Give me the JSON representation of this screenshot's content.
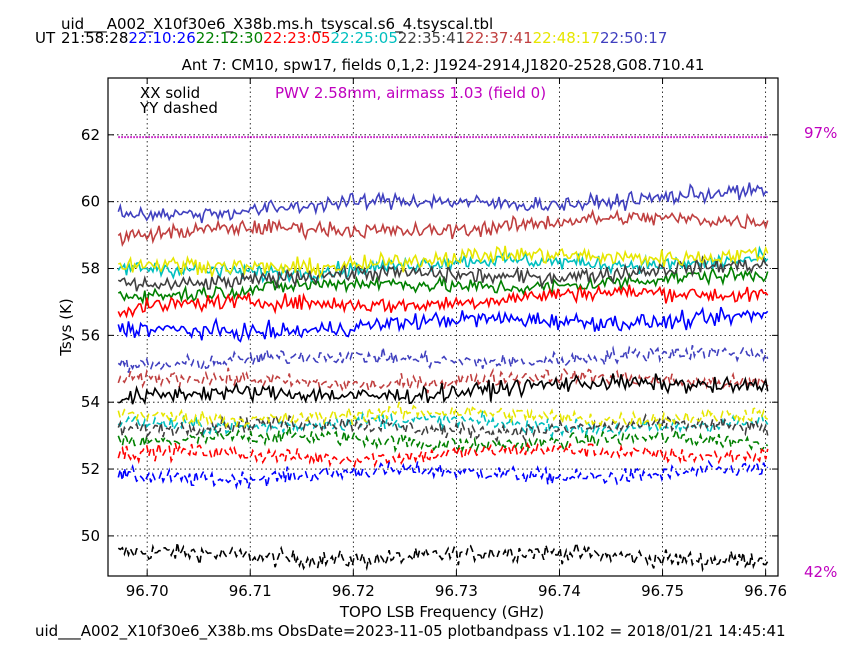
{
  "header": {
    "file_title": "uid___A002_X10f30e6_X38b.ms.h_tsyscal.s6_4.tsyscal.tbl",
    "ut_label": "UT",
    "times": [
      {
        "text": "21:58:28",
        "color": "#000000"
      },
      {
        "text": "22:10:26",
        "color": "#0000ff"
      },
      {
        "text": "22:12:30",
        "color": "#008000"
      },
      {
        "text": "22:23:05",
        "color": "#ff0000"
      },
      {
        "text": "22:25:05",
        "color": "#00bfbf"
      },
      {
        "text": "22:35:41",
        "color": "#404040"
      },
      {
        "text": "22:37:41",
        "color": "#c04040"
      },
      {
        "text": "22:48:17",
        "color": "#e6e600"
      },
      {
        "text": "22:50:17",
        "color": "#4040bf"
      }
    ]
  },
  "footer": {
    "text": "uid___A002_X10f30e6_X38b.ms  ObsDate=2023-11-05   plotbandpass v1.102 = 2018/01/21 14:45:41"
  },
  "chart_data": {
    "type": "line",
    "title": "Ant 7: CM10,  spw17,  fields 0,1,2: J1924-2914,J1820-2528,G08.710.41",
    "xlabel": "TOPO LSB Frequency (GHz)",
    "ylabel": "Tsys (K)",
    "xlim": [
      96.6962,
      96.7612
    ],
    "ylim": [
      48.8,
      63.7
    ],
    "xticks": [
      96.7,
      96.71,
      96.72,
      96.73,
      96.74,
      96.75,
      96.76
    ],
    "xtick_labels": [
      "96.70",
      "96.71",
      "96.72",
      "96.73",
      "96.74",
      "96.75",
      "96.76"
    ],
    "yticks": [
      50,
      52,
      54,
      56,
      58,
      60,
      62
    ],
    "ytick_labels": [
      "50",
      "52",
      "54",
      "56",
      "58",
      "60",
      "62"
    ],
    "grid": true,
    "legend_text": [
      "XX solid",
      "YY dashed"
    ],
    "annotation": {
      "text": "PWV 2.58mm, airmass 1.03 (field 0)",
      "color": "#bf00bf"
    },
    "transmission": {
      "color": "#bf00bf",
      "top_label": "97%",
      "bottom_label": "42%",
      "level": 61.93
    },
    "x_range": [
      96.6972,
      96.7602
    ],
    "series": [
      {
        "time": "21:58:28",
        "pol": "XX",
        "color": "#000000",
        "start": 54.1,
        "end": 54.6,
        "noise": 0.32
      },
      {
        "time": "21:58:28",
        "pol": "YY",
        "color": "#000000",
        "start": 49.4,
        "end": 49.4,
        "noise": 0.34
      },
      {
        "time": "22:10:26",
        "pol": "XX",
        "color": "#0000ff",
        "start": 56.1,
        "end": 56.6,
        "noise": 0.32
      },
      {
        "time": "22:10:26",
        "pol": "YY",
        "color": "#0000ff",
        "start": 51.8,
        "end": 51.9,
        "noise": 0.3
      },
      {
        "time": "22:12:30",
        "pol": "XX",
        "color": "#008000",
        "start": 57.3,
        "end": 57.7,
        "noise": 0.3
      },
      {
        "time": "22:12:30",
        "pol": "YY",
        "color": "#008000",
        "start": 52.9,
        "end": 52.8,
        "noise": 0.3
      },
      {
        "time": "22:23:05",
        "pol": "XX",
        "color": "#ff0000",
        "start": 56.8,
        "end": 57.3,
        "noise": 0.3
      },
      {
        "time": "22:23:05",
        "pol": "YY",
        "color": "#ff0000",
        "start": 52.4,
        "end": 52.5,
        "noise": 0.3
      },
      {
        "time": "22:25:05",
        "pol": "XX",
        "color": "#00bfbf",
        "start": 57.9,
        "end": 58.3,
        "noise": 0.3
      },
      {
        "time": "22:25:05",
        "pol": "YY",
        "color": "#00bfbf",
        "start": 53.4,
        "end": 53.3,
        "noise": 0.3
      },
      {
        "time": "22:35:41",
        "pol": "XX",
        "color": "#404040",
        "start": 57.6,
        "end": 58.0,
        "noise": 0.3
      },
      {
        "time": "22:35:41",
        "pol": "YY",
        "color": "#404040",
        "start": 53.3,
        "end": 53.2,
        "noise": 0.3
      },
      {
        "time": "22:37:41",
        "pol": "XX",
        "color": "#c04040",
        "start": 59.0,
        "end": 59.5,
        "noise": 0.3
      },
      {
        "time": "22:37:41",
        "pol": "YY",
        "color": "#c04040",
        "start": 54.6,
        "end": 54.7,
        "noise": 0.3
      },
      {
        "time": "22:48:17",
        "pol": "XX",
        "color": "#e6e600",
        "start": 58.0,
        "end": 58.5,
        "noise": 0.32
      },
      {
        "time": "22:48:17",
        "pol": "YY",
        "color": "#e6e600",
        "start": 53.6,
        "end": 53.6,
        "noise": 0.3
      },
      {
        "time": "22:50:17",
        "pol": "XX",
        "color": "#4040bf",
        "start": 59.7,
        "end": 60.2,
        "noise": 0.3
      },
      {
        "time": "22:50:17",
        "pol": "YY",
        "color": "#4040bf",
        "start": 55.2,
        "end": 55.4,
        "noise": 0.3
      }
    ]
  }
}
